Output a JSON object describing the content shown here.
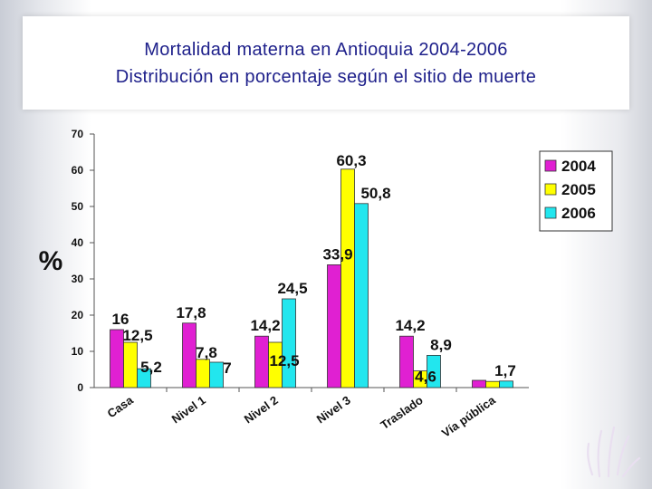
{
  "chart_data": {
    "type": "bar",
    "title_lines": [
      "Mortalidad materna en Antioquia 2004-2006",
      "Distribución en porcentaje según el sitio de muerte"
    ],
    "ylabel": "%",
    "xlabel": "",
    "ylim": [
      0,
      70
    ],
    "yticks": [
      0,
      10,
      20,
      30,
      40,
      50,
      60,
      70
    ],
    "legend_position": "top-right",
    "categories": [
      "Casa",
      "Nivel 1",
      "Nivel 2",
      "Nivel 3",
      "Traslado",
      "Vía pública"
    ],
    "series": [
      {
        "name": "2004",
        "color": "#e020d2",
        "values": [
          16,
          17.8,
          14.2,
          33.9,
          14.2,
          2
        ],
        "labels": [
          "16",
          "17,8",
          "14,2",
          "33,9",
          "14,2",
          ""
        ]
      },
      {
        "name": "2005",
        "color": "#ffff00",
        "values": [
          12.5,
          7.8,
          12.5,
          60.3,
          4.6,
          1.7
        ],
        "labels": [
          "12,5",
          "7,8",
          "12,5",
          "60,3",
          "4,6",
          "1,7"
        ]
      },
      {
        "name": "2006",
        "color": "#22e6ee",
        "values": [
          5.2,
          7,
          24.5,
          50.8,
          8.9,
          1.8
        ],
        "labels": [
          "5,2",
          "7",
          "24,5",
          "50,8",
          "8,9",
          ""
        ]
      }
    ]
  }
}
